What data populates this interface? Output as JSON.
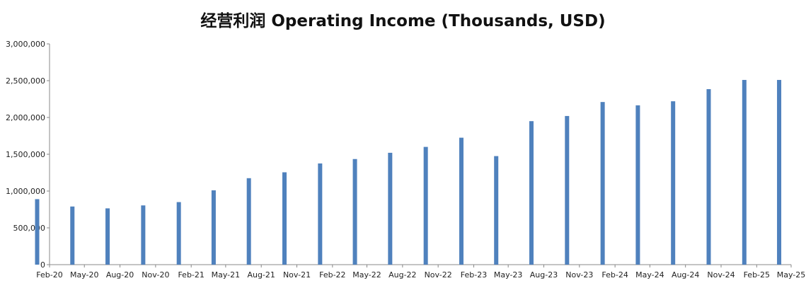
{
  "chart_data": {
    "type": "bar",
    "title": "经营利润 Operating Income (Thousands, USD)",
    "xlabel": "",
    "ylabel": "",
    "ylim": [
      0,
      3000000
    ],
    "yticks": [
      "0",
      "500,000",
      "1,000,000",
      "1,500,000",
      "2,000,000",
      "2,500,000",
      "3,000,000"
    ],
    "xtick_labels": [
      "Feb-20",
      "May-20",
      "Aug-20",
      "Nov-20",
      "Feb-21",
      "May-21",
      "Aug-21",
      "Nov-21",
      "Feb-22",
      "May-22",
      "Aug-22",
      "Nov-22",
      "Feb-23",
      "May-23",
      "Aug-23",
      "Nov-23",
      "Feb-24",
      "May-24",
      "Aug-24",
      "Nov-24",
      "Feb-25",
      "May-25"
    ],
    "grid": false,
    "color": "#4f81bd",
    "bars": [
      {
        "date": "2019-12-31",
        "value": 890000
      },
      {
        "date": "2020-03-31",
        "value": 790000
      },
      {
        "date": "2020-06-30",
        "value": 765000
      },
      {
        "date": "2020-09-30",
        "value": 805000
      },
      {
        "date": "2020-12-31",
        "value": 850000
      },
      {
        "date": "2021-03-31",
        "value": 1010000
      },
      {
        "date": "2021-06-30",
        "value": 1175000
      },
      {
        "date": "2021-09-30",
        "value": 1255000
      },
      {
        "date": "2021-12-31",
        "value": 1375000
      },
      {
        "date": "2022-03-31",
        "value": 1435000
      },
      {
        "date": "2022-06-30",
        "value": 1520000
      },
      {
        "date": "2022-09-30",
        "value": 1600000
      },
      {
        "date": "2022-12-31",
        "value": 1725000
      },
      {
        "date": "2023-03-31",
        "value": 1475000
      },
      {
        "date": "2023-06-30",
        "value": 1950000
      },
      {
        "date": "2023-09-30",
        "value": 2020000
      },
      {
        "date": "2023-12-31",
        "value": 2210000
      },
      {
        "date": "2024-03-31",
        "value": 2165000
      },
      {
        "date": "2024-06-30",
        "value": 2220000
      },
      {
        "date": "2024-09-30",
        "value": 2385000
      },
      {
        "date": "2024-12-31",
        "value": 2510000
      },
      {
        "date": "2025-03-31",
        "value": 2510000
      }
    ]
  }
}
